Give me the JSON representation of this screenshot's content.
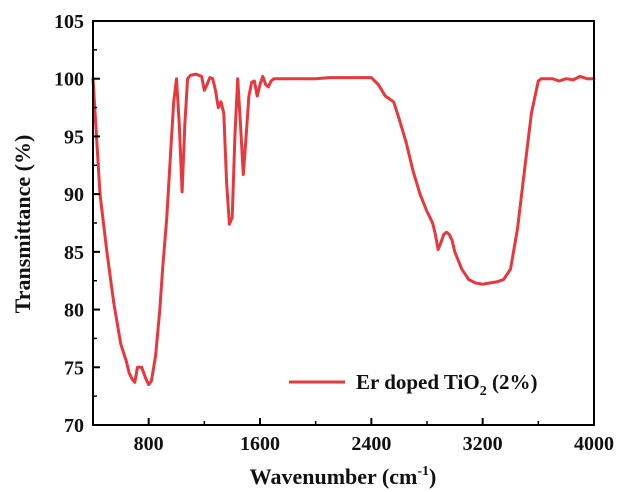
{
  "chart_data": {
    "type": "line",
    "xlabel": "Wavenumber (cm",
    "xlabel_sup": "-1",
    "xlabel_end": ")",
    "ylabel": "Transmittance (%)",
    "xlim": [
      400,
      4000
    ],
    "ylim": [
      70,
      105
    ],
    "xticks": [
      800,
      1600,
      2400,
      3200,
      4000
    ],
    "yticks": [
      70,
      75,
      80,
      85,
      90,
      95,
      100,
      105
    ],
    "legend_position": "bottom-right",
    "grid": false,
    "series": [
      {
        "name": "Er doped TiO",
        "name_sub": "2",
        "name_end": " (2%)",
        "color": "#e8383d",
        "x": [
          400,
          420,
          450,
          500,
          550,
          600,
          640,
          660,
          680,
          700,
          720,
          750,
          780,
          800,
          820,
          850,
          880,
          900,
          930,
          960,
          980,
          1000,
          1020,
          1040,
          1060,
          1080,
          1100,
          1140,
          1180,
          1200,
          1220,
          1240,
          1260,
          1280,
          1300,
          1320,
          1340,
          1360,
          1380,
          1400,
          1420,
          1440,
          1460,
          1480,
          1500,
          1520,
          1540,
          1560,
          1580,
          1600,
          1620,
          1640,
          1660,
          1680,
          1700,
          1720,
          1760,
          1800,
          1900,
          2000,
          2100,
          2200,
          2300,
          2400,
          2450,
          2500,
          2560,
          2600,
          2650,
          2700,
          2750,
          2800,
          2820,
          2840,
          2860,
          2880,
          2900,
          2920,
          2940,
          2960,
          2980,
          3000,
          3050,
          3100,
          3150,
          3200,
          3250,
          3300,
          3350,
          3400,
          3450,
          3500,
          3550,
          3600,
          3620,
          3650,
          3700,
          3750,
          3800,
          3850,
          3900,
          3950,
          4000
        ],
        "y": [
          100,
          96,
          90,
          85,
          80.5,
          77,
          75.5,
          74.5,
          74,
          73.7,
          75,
          75,
          74,
          73.5,
          73.8,
          76,
          80,
          83.5,
          88,
          94,
          98,
          100,
          96,
          90.2,
          96,
          100,
          100.3,
          100.4,
          100.2,
          99,
          99.5,
          100.1,
          100,
          99,
          97.5,
          98,
          97,
          91,
          87.4,
          88,
          95,
          100,
          96,
          91.7,
          95,
          98.5,
          99.7,
          99.8,
          98.5,
          99.5,
          100.2,
          99.5,
          99.3,
          99.8,
          100,
          100,
          100,
          100,
          100,
          100,
          100.1,
          100.1,
          100.1,
          100.1,
          99.5,
          98.5,
          98,
          96.5,
          94.5,
          92,
          90,
          88.5,
          88,
          87.5,
          86.5,
          85.2,
          85.8,
          86.5,
          86.7,
          86.5,
          86,
          85,
          83.5,
          82.6,
          82.3,
          82.2,
          82.3,
          82.4,
          82.6,
          83.5,
          87,
          92,
          97,
          99.8,
          100,
          100,
          100,
          99.8,
          100,
          99.9,
          100.2,
          100,
          100
        ]
      }
    ]
  }
}
